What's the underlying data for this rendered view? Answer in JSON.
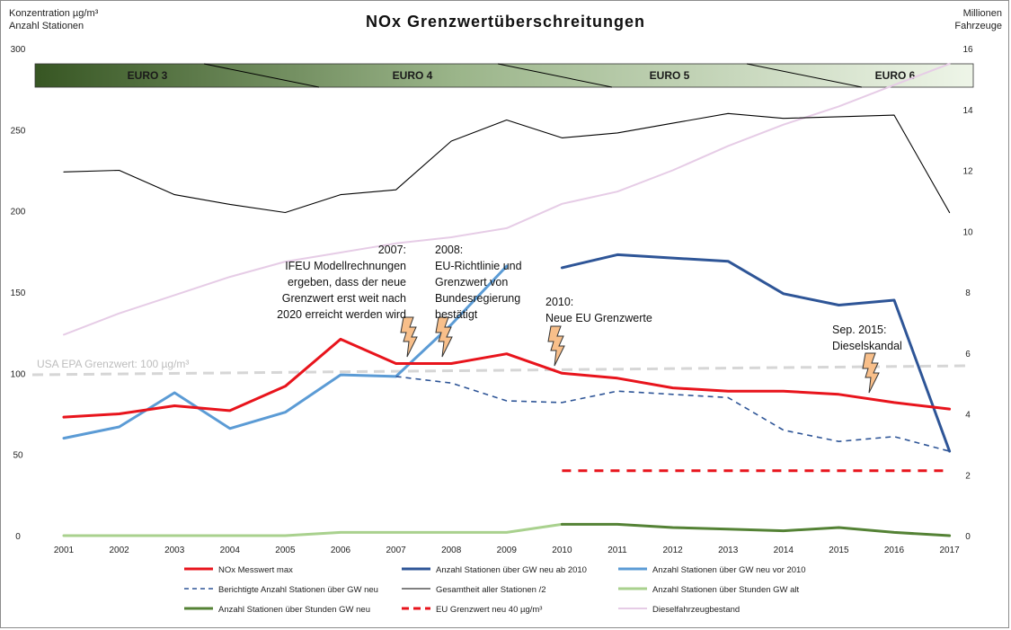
{
  "title": "NOx Grenzwertüberschreitungen",
  "left_axis_label": [
    "Konzentration µg/m³",
    "Anzahl Stationen"
  ],
  "right_axis_label": [
    "Millionen",
    "Fahrzeuge"
  ],
  "euro_labels": [
    "EURO 3",
    "EURO 4",
    "EURO 5",
    "EURO 6"
  ],
  "epa_label": "USA EPA Grenzwert: 100 µg/m³",
  "annotations": {
    "a2007": [
      "2007:",
      "IFEU Modellrechnungen",
      "ergeben, dass der neue",
      "Grenzwert erst weit nach",
      "2020 erreicht werden wird"
    ],
    "a2008": [
      "2008:",
      "EU-Richtlinie und",
      "Grenzwert von",
      "Bundesregierung",
      "bestätigt"
    ],
    "a2010": [
      "2010:",
      "Neue EU Grenzwerte"
    ],
    "a2015": [
      "Sep. 2015:",
      "Dieselskandal"
    ]
  },
  "colors": {
    "nox": "#e8141c",
    "stations_new": "#2e5597",
    "stations_old": "#5b9bd5",
    "corrected": "#2e5597",
    "total": "#000000",
    "hours_old": "#a9d18e",
    "hours_new": "#548235",
    "eu_limit": "#e8141c",
    "diesel": "#e6cce6",
    "epa": "#d6d6d6"
  },
  "chart_data": {
    "type": "line",
    "title": "NOx Grenzwertüberschreitungen",
    "x": [
      2001,
      2002,
      2003,
      2004,
      2005,
      2006,
      2007,
      2008,
      2009,
      2010,
      2011,
      2012,
      2013,
      2014,
      2015,
      2016,
      2017
    ],
    "y_left": {
      "label": "Konzentration µg/m³ / Anzahl Stationen",
      "range": [
        0,
        300
      ],
      "ticks": [
        0,
        50,
        100,
        150,
        200,
        250,
        300
      ]
    },
    "y_right": {
      "label": "Millionen Fahrzeuge",
      "range": [
        0,
        16
      ],
      "ticks": [
        0,
        2,
        4,
        6,
        8,
        10,
        12,
        14,
        16
      ]
    },
    "legend_position": "bottom",
    "series": [
      {
        "name": "NOx Messwert max",
        "axis": "left",
        "style": "solid",
        "color_key": "nox",
        "values": [
          73,
          75,
          80,
          77,
          92,
          121,
          106,
          106,
          112,
          100,
          97,
          91,
          89,
          89,
          87,
          82,
          78
        ]
      },
      {
        "name": "Anzahl Stationen über GW neu ab 2010",
        "axis": "left",
        "style": "solid",
        "color_key": "stations_new",
        "values": [
          null,
          null,
          null,
          null,
          null,
          null,
          null,
          null,
          null,
          165,
          173,
          171,
          169,
          149,
          142,
          145,
          52
        ]
      },
      {
        "name": "Anzahl Stationen über GW neu vor 2010",
        "axis": "left",
        "style": "solid",
        "color_key": "stations_old",
        "values": [
          60,
          67,
          88,
          66,
          76,
          99,
          98,
          130,
          166,
          null,
          null,
          null,
          null,
          null,
          null,
          null,
          null
        ]
      },
      {
        "name": "Berichtigte Anzahl Stationen über GW neu",
        "axis": "left",
        "style": "dashed",
        "color_key": "corrected",
        "values": [
          null,
          null,
          null,
          null,
          null,
          null,
          98,
          94,
          83,
          82,
          89,
          87,
          85,
          65,
          58,
          61,
          52
        ]
      },
      {
        "name": "Gesamtheit aller Stationen /2",
        "axis": "left",
        "style": "solid",
        "color_key": "total",
        "values": [
          224,
          225,
          210,
          204,
          199,
          210,
          213,
          243,
          256,
          245,
          248,
          254,
          260,
          257,
          258,
          259,
          199
        ]
      },
      {
        "name": "Anzahl Stationen über Stunden GW alt",
        "axis": "left",
        "style": "solid",
        "color_key": "hours_old",
        "values": [
          0,
          0,
          0,
          0,
          0,
          2,
          2,
          2,
          2,
          7,
          null,
          null,
          null,
          null,
          null,
          null,
          null
        ]
      },
      {
        "name": "Anzahl Stationen über Stunden GW neu",
        "axis": "left",
        "style": "solid",
        "color_key": "hours_new",
        "values": [
          null,
          null,
          null,
          null,
          null,
          null,
          null,
          null,
          null,
          7,
          7,
          5,
          4,
          3,
          5,
          2,
          0
        ]
      },
      {
        "name": "EU Grenzwert neu 40 µg/m³",
        "axis": "left",
        "style": "dashed",
        "color_key": "eu_limit",
        "values": [
          null,
          null,
          null,
          null,
          null,
          null,
          null,
          null,
          null,
          40,
          40,
          40,
          40,
          40,
          40,
          40,
          40
        ]
      },
      {
        "name": "Dieselfahrzeugbestand",
        "axis": "right",
        "style": "solid",
        "color_key": "diesel",
        "values": [
          6.6,
          7.3,
          7.9,
          8.5,
          9.0,
          9.3,
          9.6,
          9.8,
          10.1,
          10.9,
          11.3,
          12.0,
          12.8,
          13.5,
          14.1,
          14.8,
          15.5
        ]
      }
    ],
    "reference_lines": [
      {
        "label": "USA EPA Grenzwert: 100 µg/m³",
        "axis": "left",
        "value": 100,
        "style": "dashed"
      }
    ],
    "periods": [
      {
        "label": "EURO 3",
        "from": 2001,
        "to": 2005
      },
      {
        "label": "EURO 4",
        "from": 2005,
        "to": 2010
      },
      {
        "label": "EURO 5",
        "from": 2010,
        "to": 2015
      },
      {
        "label": "EURO 6",
        "from": 2015,
        "to": 2017
      }
    ]
  }
}
